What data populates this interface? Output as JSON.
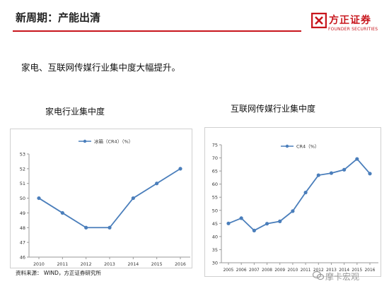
{
  "slide": {
    "title": "新周期：产能出清",
    "lead": "家电、互联网传媒行业集中度大幅提升。",
    "source": "资料来源： WIND，方正证券研究所",
    "watermark": "摩卡宏观"
  },
  "logo": {
    "cn": "方正证券",
    "en": "FOUNDER SECURITIES",
    "brand_color": "#c8161d"
  },
  "chart_data": [
    {
      "type": "line",
      "title": "家电行业集中度",
      "series": [
        {
          "name": "冰箱（CR4）（%）",
          "values": [
            50,
            49,
            48,
            48,
            50,
            51,
            52
          ]
        }
      ],
      "categories": [
        "2010",
        "2011",
        "2012",
        "2013",
        "2014",
        "2015",
        "2016"
      ],
      "ylim": [
        46,
        53
      ],
      "yticks": [
        46,
        47,
        48,
        49,
        50,
        51,
        52,
        53
      ],
      "grid": false,
      "legend": "top",
      "color": "#4a7ebb"
    },
    {
      "type": "line",
      "title": "互联网传媒行业集中度",
      "series": [
        {
          "name": "CR4（%）",
          "values": [
            45,
            47,
            42.3,
            44.9,
            45.8,
            49.7,
            56.8,
            63.4,
            64.2,
            65.5,
            69.6,
            64
          ]
        }
      ],
      "categories": [
        "2005",
        "2006",
        "2007",
        "2008",
        "2009",
        "2010",
        "2011",
        "2012",
        "2013",
        "2014",
        "2015",
        "2016"
      ],
      "ylim": [
        30,
        75
      ],
      "yticks": [
        30,
        35,
        40,
        45,
        50,
        55,
        60,
        65,
        70,
        75
      ],
      "grid": false,
      "legend": "top",
      "color": "#4a7ebb"
    }
  ]
}
